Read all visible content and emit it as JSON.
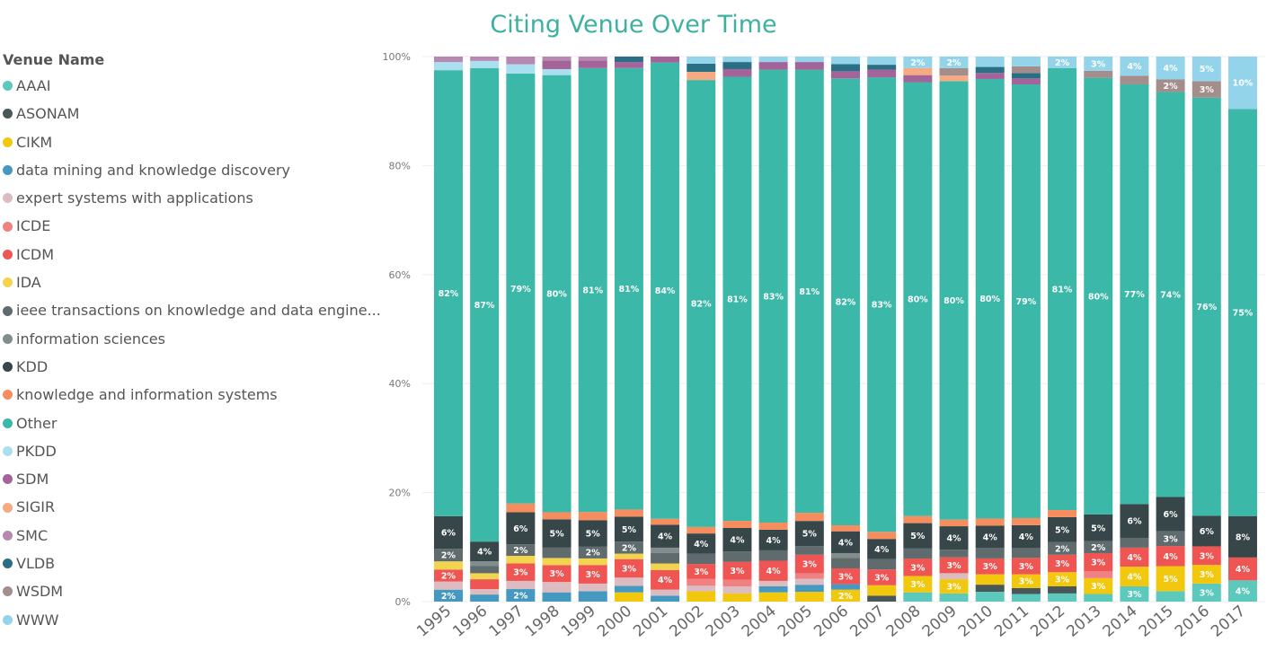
{
  "chart_data": {
    "type": "bar",
    "stacked": "100%",
    "title": "Citing Venue Over Time",
    "legend_title": "Venue Name",
    "legend_position": "left",
    "xlabel": "",
    "ylabel": "",
    "ylim": [
      0,
      100
    ],
    "yticks": [
      "0%",
      "20%",
      "40%",
      "60%",
      "80%",
      "100%"
    ],
    "grid": true,
    "categories": [
      "1995",
      "1996",
      "1997",
      "1998",
      "1999",
      "2000",
      "2001",
      "2002",
      "2003",
      "2004",
      "2005",
      "2006",
      "2007",
      "2008",
      "2009",
      "2010",
      "2011",
      "2012",
      "2013",
      "2014",
      "2015",
      "2016",
      "2017"
    ],
    "series": [
      {
        "name": "AAAI",
        "color": "#5CC9BC",
        "values": [
          0,
          0,
          0,
          0,
          0,
          0,
          0,
          0,
          0,
          0,
          0,
          0,
          0,
          1.7,
          1.5,
          1.8,
          1.4,
          1.5,
          1.4,
          2.8,
          1.9,
          3.3,
          3.9
        ]
      },
      {
        "name": "ASONAM",
        "color": "#4A5759",
        "values": [
          0,
          0,
          0,
          0,
          0,
          0,
          0,
          0,
          0,
          0,
          0,
          0,
          1.1,
          0,
          0,
          1.3,
          1.1,
          1.3,
          0,
          0,
          0,
          0,
          0
        ]
      },
      {
        "name": "CIKM",
        "color": "#F2C80F",
        "values": [
          0,
          0,
          0,
          0,
          0,
          1.7,
          0,
          1.9,
          1.5,
          1.7,
          1.8,
          2.2,
          1.9,
          3,
          2.6,
          1.9,
          2.5,
          2.6,
          2.9,
          3.6,
          4.6,
          3.4,
          0
        ]
      },
      {
        "name": "data mining and knowledge discovery",
        "color": "#4598C0",
        "values": [
          2.2,
          1.3,
          2.3,
          1.7,
          1.9,
          1.2,
          1.1,
          0,
          0,
          1.1,
          1.3,
          1.0,
          0,
          0,
          0,
          0,
          0,
          0,
          0,
          0,
          0,
          0,
          0
        ]
      },
      {
        "name": "expert systems with applications",
        "color": "#DDBCC1",
        "values": [
          1.5,
          1,
          1.5,
          1.9,
          1.4,
          1.5,
          1.1,
          1,
          1.3,
          1,
          1.1,
          0,
          0,
          0,
          1.1,
          0,
          0,
          0,
          0,
          0,
          0,
          0,
          0
        ]
      },
      {
        "name": "ICDE",
        "color": "#F08183",
        "values": [
          0,
          0,
          0,
          0,
          0,
          0,
          0,
          1.3,
          1.2,
          0,
          1.0,
          0,
          0,
          0,
          0,
          0,
          0,
          0,
          1.3,
          0,
          0,
          0,
          0
        ]
      },
      {
        "name": "ICDM",
        "color": "#EF5552",
        "values": [
          2.2,
          1.8,
          3.2,
          3.1,
          3.4,
          3.4,
          3.6,
          2.7,
          3.3,
          3.7,
          3.4,
          2.9,
          2.9,
          3.2,
          2.9,
          2.9,
          3.0,
          3.2,
          3.3,
          3.5,
          3.7,
          3.4,
          4.2
        ]
      },
      {
        "name": "IDA",
        "color": "#F2D44E",
        "values": [
          1.5,
          1.1,
          1.4,
          1.3,
          1.2,
          1.0,
          1.2,
          0,
          0,
          0,
          0,
          0,
          0,
          0,
          0,
          0,
          0,
          0,
          0,
          0,
          0,
          0,
          0
        ]
      },
      {
        "name": "ieee transactions on knowledge and data engine...",
        "color": "#5F6B6D",
        "values": [
          2.3,
          1.3,
          2.1,
          1.9,
          2.2,
          2.2,
          1.9,
          1.9,
          1.9,
          1.9,
          1.6,
          1.9,
          1.9,
          1.9,
          1.4,
          1.9,
          1.8,
          2.3,
          2.2,
          1.8,
          2.7,
          0,
          0
        ]
      },
      {
        "name": "information sciences",
        "color": "#838D8E",
        "values": [
          0,
          0.9,
          0,
          0,
          0,
          0,
          1.0,
          0,
          0,
          0,
          0,
          0.9,
          0,
          0,
          0,
          0,
          0,
          0,
          0,
          0,
          0,
          0,
          0
        ]
      },
      {
        "name": "KDD",
        "color": "#374649",
        "values": [
          6,
          3.6,
          5.9,
          5.2,
          4.8,
          4.6,
          4.2,
          3.7,
          4.3,
          3.8,
          4.6,
          4.0,
          3.7,
          4.6,
          4.3,
          4.1,
          4.2,
          4.6,
          4.9,
          6.2,
          6.3,
          5.6,
          7.6
        ]
      },
      {
        "name": "knowledge and information systems",
        "color": "#F58D5E",
        "values": [
          0,
          0,
          1.6,
          1.3,
          1.5,
          1.3,
          1.1,
          1.2,
          1.3,
          1.3,
          1.5,
          1.1,
          1.3,
          1.3,
          1.2,
          1.3,
          1.3,
          1.3,
          0,
          0,
          0,
          0,
          0
        ]
      },
      {
        "name": "Other",
        "color": "#3BB8A8",
        "values": [
          82,
          86.8,
          78.9,
          80.2,
          81.2,
          81,
          83.7,
          82,
          81.4,
          83.1,
          81.3,
          82,
          83.4,
          79.6,
          80.3,
          80.4,
          79.4,
          81.1,
          80.1,
          77,
          74.3,
          76.4,
          74.7
        ]
      },
      {
        "name": "PKDD",
        "color": "#A9DFEF",
        "values": [
          1.5,
          1.3,
          1.7,
          1.1,
          0,
          0,
          0,
          0,
          0,
          0,
          0,
          0,
          0,
          0,
          0,
          0,
          0,
          0,
          0,
          0,
          0,
          0,
          0
        ]
      },
      {
        "name": "SDM",
        "color": "#A4649A",
        "values": [
          0,
          0,
          0,
          1.6,
          1.4,
          1.1,
          1.1,
          0,
          1.4,
          1.4,
          1.4,
          1.3,
          1.4,
          1.3,
          0,
          1.1,
          1.1,
          0,
          0,
          0,
          0,
          0,
          0
        ]
      },
      {
        "name": "SIGIR",
        "color": "#F6AA84",
        "values": [
          0,
          0,
          0,
          0,
          0,
          0,
          0,
          1.5,
          0,
          0,
          0,
          0,
          0,
          1.3,
          1.0,
          0,
          0,
          0,
          0,
          0,
          0,
          0,
          0
        ]
      },
      {
        "name": "SMC",
        "color": "#B788B0",
        "values": [
          1,
          0.8,
          1.4,
          0.7,
          0.7,
          0,
          0,
          0,
          0,
          0,
          0,
          0,
          0,
          0,
          0,
          0,
          0,
          0,
          0,
          0,
          0,
          0,
          0
        ]
      },
      {
        "name": "VLDB",
        "color": "#2A6F86",
        "values": [
          0,
          0,
          0,
          0,
          0,
          1.0,
          0,
          1.5,
          1.3,
          0,
          0,
          1.3,
          0.9,
          0,
          0,
          1.1,
          1.0,
          0,
          0,
          0,
          0,
          0,
          0
        ]
      },
      {
        "name": "WSDM",
        "color": "#A38E8C",
        "values": [
          0,
          0,
          0,
          0,
          0,
          0,
          0,
          0,
          0,
          0,
          0,
          0,
          0,
          0,
          1.4,
          0,
          1.2,
          0,
          1.3,
          1.6,
          2.3,
          3.0,
          0
        ]
      },
      {
        "name": "WWW",
        "color": "#93D4EA",
        "values": [
          0,
          0,
          0,
          0,
          0,
          0,
          0,
          1.3,
          1,
          1,
          1,
          1.4,
          1.5,
          2.1,
          2.1,
          1.9,
          1.8,
          2.1,
          2.6,
          3.5,
          4.2,
          4.5,
          9.6
        ]
      }
    ]
  }
}
